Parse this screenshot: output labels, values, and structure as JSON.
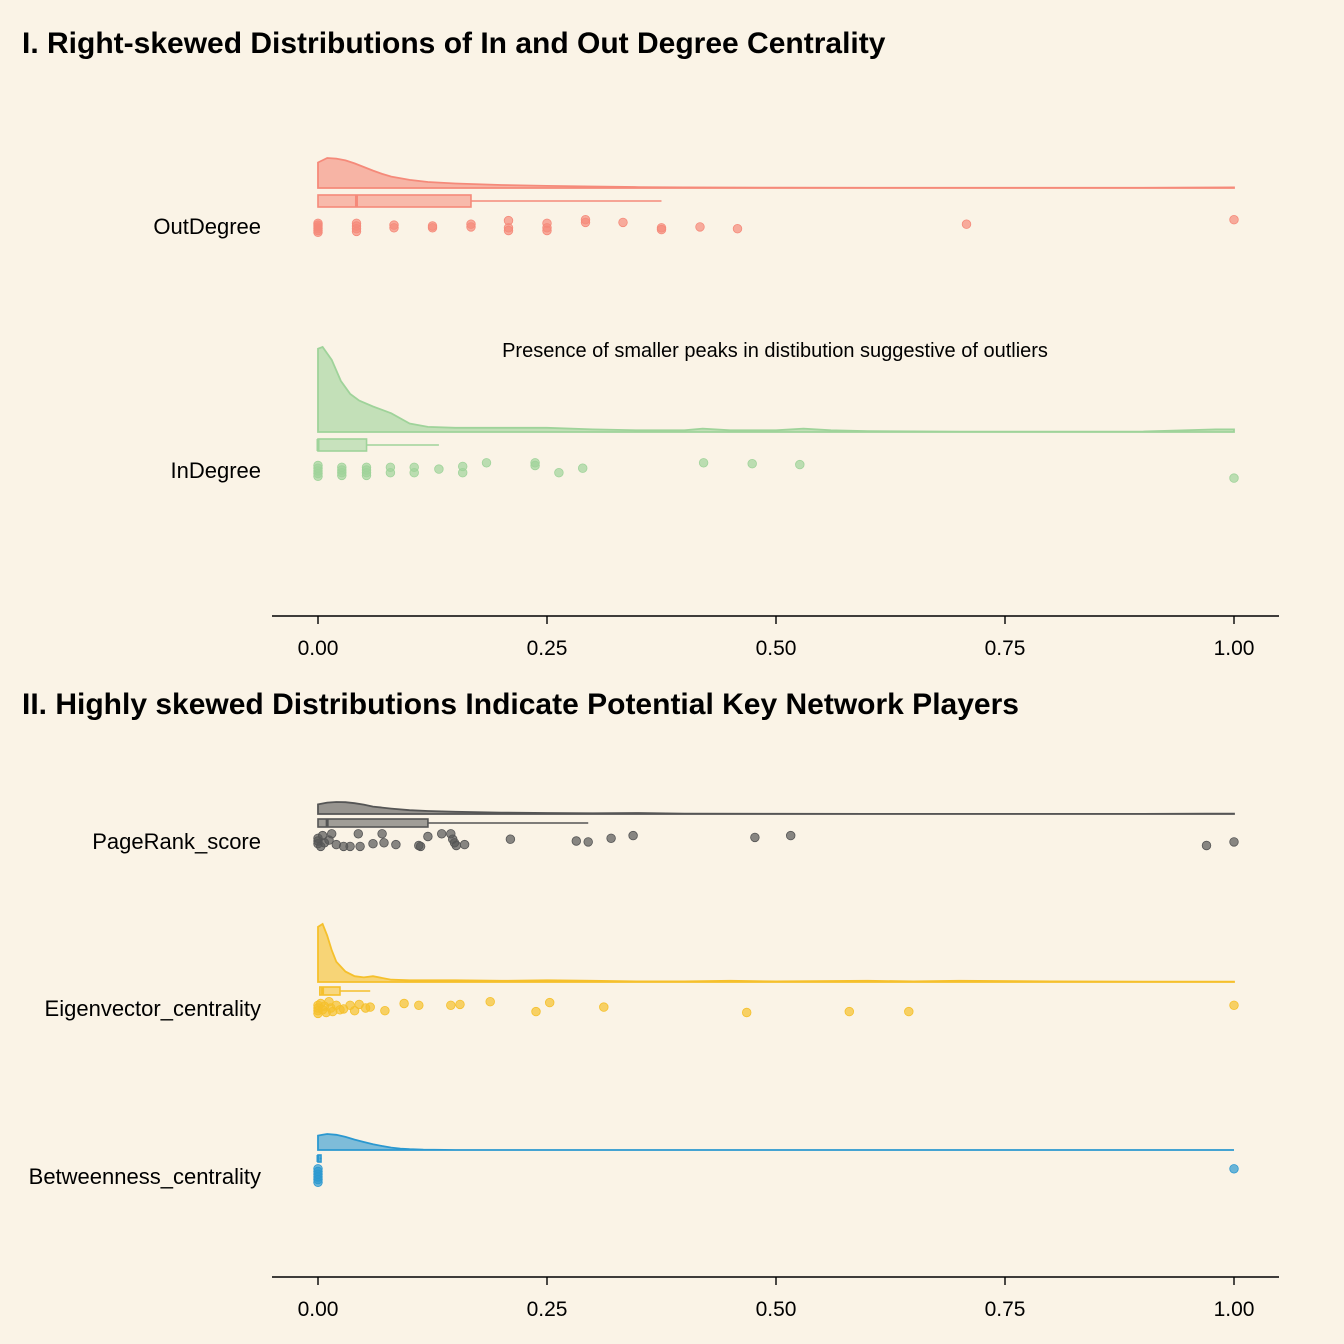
{
  "chart_data": [
    {
      "type": "raincloud",
      "title": "I. Right-skewed Distributions of In and Out Degree Centrality",
      "xlim": [
        0,
        1
      ],
      "x_ticks": [
        "0.00",
        "0.25",
        "0.50",
        "0.75",
        "1.00"
      ],
      "annotation": "Presence of smaller peaks in distibution suggestive of outliers",
      "series": [
        {
          "name": "OutDegree",
          "color": "#f58a7a",
          "box": {
            "whisker_low": 0.0,
            "q1": 0.0,
            "median": 0.042,
            "q3": 0.167,
            "whisker_high": 0.375
          },
          "density_x": [
            0,
            0.01,
            0.02,
            0.03,
            0.04,
            0.05,
            0.06,
            0.07,
            0.08,
            0.1,
            0.12,
            0.15,
            0.2,
            0.25,
            0.3,
            0.35,
            0.4,
            0.5,
            0.6,
            0.7,
            0.8,
            0.9,
            1.0
          ],
          "density_y": [
            0.85,
            1.0,
            0.98,
            0.92,
            0.82,
            0.7,
            0.58,
            0.47,
            0.38,
            0.27,
            0.2,
            0.15,
            0.1,
            0.07,
            0.05,
            0.03,
            0.02,
            0.01,
            0.005,
            0.005,
            0.005,
            0.005,
            0.02
          ],
          "points": [
            {
              "x": 0.0,
              "j": -0.3
            },
            {
              "x": 0.0,
              "j": -0.1
            },
            {
              "x": 0.0,
              "j": 0.1
            },
            {
              "x": 0.0,
              "j": 0.3
            },
            {
              "x": 0.0,
              "j": 0.5
            },
            {
              "x": 0.0,
              "j": 0.7
            },
            {
              "x": 0.042,
              "j": -0.3
            },
            {
              "x": 0.042,
              "j": 0.0
            },
            {
              "x": 0.042,
              "j": 0.3
            },
            {
              "x": 0.042,
              "j": 0.6
            },
            {
              "x": 0.083,
              "j": -0.1
            },
            {
              "x": 0.083,
              "j": 0.2
            },
            {
              "x": 0.125,
              "j": 0.0
            },
            {
              "x": 0.125,
              "j": 0.2
            },
            {
              "x": 0.167,
              "j": -0.2
            },
            {
              "x": 0.167,
              "j": 0.1
            },
            {
              "x": 0.208,
              "j": -0.6
            },
            {
              "x": 0.208,
              "j": 0.2
            },
            {
              "x": 0.208,
              "j": 0.5
            },
            {
              "x": 0.25,
              "j": -0.3
            },
            {
              "x": 0.25,
              "j": 0.2
            },
            {
              "x": 0.25,
              "j": 0.5
            },
            {
              "x": 0.292,
              "j": -0.7
            },
            {
              "x": 0.292,
              "j": -0.4
            },
            {
              "x": 0.333,
              "j": -0.4
            },
            {
              "x": 0.375,
              "j": 0.2
            },
            {
              "x": 0.375,
              "j": 0.4
            },
            {
              "x": 0.417,
              "j": 0.1
            },
            {
              "x": 0.458,
              "j": 0.3
            },
            {
              "x": 0.708,
              "j": -0.2
            },
            {
              "x": 1.0,
              "j": -0.7
            }
          ]
        },
        {
          "name": "InDegree",
          "color": "#9fd39a",
          "box": {
            "whisker_low": 0.0,
            "q1": 0.0,
            "median": 0.0,
            "q3": 0.053,
            "whisker_high": 0.132
          },
          "density_x": [
            0,
            0.005,
            0.015,
            0.025,
            0.035,
            0.045,
            0.06,
            0.08,
            0.1,
            0.12,
            0.15,
            0.2,
            0.25,
            0.3,
            0.35,
            0.4,
            0.42,
            0.45,
            0.5,
            0.53,
            0.56,
            0.6,
            0.7,
            0.8,
            0.9,
            0.98,
            1.0
          ],
          "density_y": [
            0.98,
            1.0,
            0.85,
            0.6,
            0.45,
            0.37,
            0.3,
            0.22,
            0.1,
            0.06,
            0.05,
            0.05,
            0.05,
            0.03,
            0.02,
            0.02,
            0.04,
            0.02,
            0.02,
            0.04,
            0.02,
            0.01,
            0.005,
            0.005,
            0.005,
            0.03,
            0.03
          ],
          "points": [
            {
              "x": 0.0,
              "j": -0.5
            },
            {
              "x": 0.0,
              "j": -0.2
            },
            {
              "x": 0.0,
              "j": 0.1
            },
            {
              "x": 0.0,
              "j": 0.4
            },
            {
              "x": 0.0,
              "j": 0.7
            },
            {
              "x": 0.026,
              "j": -0.3
            },
            {
              "x": 0.026,
              "j": 0.0
            },
            {
              "x": 0.026,
              "j": 0.3
            },
            {
              "x": 0.026,
              "j": 0.6
            },
            {
              "x": 0.053,
              "j": -0.3
            },
            {
              "x": 0.053,
              "j": 0.0
            },
            {
              "x": 0.053,
              "j": 0.3
            },
            {
              "x": 0.053,
              "j": 0.6
            },
            {
              "x": 0.079,
              "j": -0.3
            },
            {
              "x": 0.079,
              "j": 0.3
            },
            {
              "x": 0.105,
              "j": -0.3
            },
            {
              "x": 0.105,
              "j": 0.3
            },
            {
              "x": 0.132,
              "j": -0.1
            },
            {
              "x": 0.158,
              "j": -0.4
            },
            {
              "x": 0.158,
              "j": 0.3
            },
            {
              "x": 0.184,
              "j": -0.8
            },
            {
              "x": 0.237,
              "j": -0.8
            },
            {
              "x": 0.237,
              "j": -0.5
            },
            {
              "x": 0.263,
              "j": 0.3
            },
            {
              "x": 0.289,
              "j": -0.2
            },
            {
              "x": 0.421,
              "j": -0.8
            },
            {
              "x": 0.474,
              "j": -0.7
            },
            {
              "x": 0.526,
              "j": -0.6
            },
            {
              "x": 1.0,
              "j": 0.9
            }
          ]
        }
      ]
    },
    {
      "type": "raincloud",
      "title": "II. Highly skewed Distributions Indicate Potential Key Network Players",
      "xlim": [
        0,
        1
      ],
      "x_ticks": [
        "0.00",
        "0.25",
        "0.50",
        "0.75",
        "1.00"
      ],
      "series": [
        {
          "name": "PageRank_score",
          "color": "#555555",
          "box": {
            "whisker_low": 0.0,
            "q1": 0.0,
            "median": 0.01,
            "q3": 0.12,
            "whisker_high": 0.295
          },
          "density_x": [
            0,
            0.01,
            0.02,
            0.03,
            0.04,
            0.05,
            0.06,
            0.08,
            0.1,
            0.12,
            0.15,
            0.2,
            0.25,
            0.3,
            0.35,
            0.4,
            0.5,
            0.6,
            0.7,
            0.8,
            0.9,
            0.97,
            1.0
          ],
          "density_y": [
            0.8,
            0.95,
            1.0,
            0.98,
            0.9,
            0.78,
            0.62,
            0.45,
            0.32,
            0.25,
            0.18,
            0.12,
            0.08,
            0.06,
            0.08,
            0.03,
            0.02,
            0.01,
            0.005,
            0.005,
            0.005,
            0.03,
            0.03
          ],
          "points": [
            {
              "x": 0.0,
              "j": -0.3
            },
            {
              "x": 0.0,
              "j": 0.0
            },
            {
              "x": 0.0,
              "j": 0.3
            },
            {
              "x": 0.003,
              "j": 0.6
            },
            {
              "x": 0.005,
              "j": -0.6
            },
            {
              "x": 0.007,
              "j": 0.2
            },
            {
              "x": 0.012,
              "j": -0.1
            },
            {
              "x": 0.015,
              "j": -0.8
            },
            {
              "x": 0.02,
              "j": 0.4
            },
            {
              "x": 0.028,
              "j": 0.6
            },
            {
              "x": 0.035,
              "j": 0.6
            },
            {
              "x": 0.044,
              "j": -0.8
            },
            {
              "x": 0.046,
              "j": 0.6
            },
            {
              "x": 0.06,
              "j": 0.3
            },
            {
              "x": 0.07,
              "j": -0.8
            },
            {
              "x": 0.072,
              "j": 0.2
            },
            {
              "x": 0.085,
              "j": 0.4
            },
            {
              "x": 0.11,
              "j": 0.5
            },
            {
              "x": 0.112,
              "j": 0.6
            },
            {
              "x": 0.12,
              "j": -0.5
            },
            {
              "x": 0.135,
              "j": -0.8
            },
            {
              "x": 0.145,
              "j": -0.8
            },
            {
              "x": 0.147,
              "j": -0.2
            },
            {
              "x": 0.149,
              "j": 0.2
            },
            {
              "x": 0.151,
              "j": 0.5
            },
            {
              "x": 0.16,
              "j": 0.4
            },
            {
              "x": 0.21,
              "j": -0.2
            },
            {
              "x": 0.282,
              "j": 0.0
            },
            {
              "x": 0.295,
              "j": 0.1
            },
            {
              "x": 0.32,
              "j": -0.3
            },
            {
              "x": 0.344,
              "j": -0.6
            },
            {
              "x": 0.477,
              "j": -0.4
            },
            {
              "x": 0.516,
              "j": -0.6
            },
            {
              "x": 0.97,
              "j": 0.5
            },
            {
              "x": 1.0,
              "j": 0.1
            }
          ]
        },
        {
          "name": "Eigenvector_centrality",
          "color": "#f5c02c",
          "box": {
            "whisker_low": 0.0,
            "q1": 0.002,
            "median": 0.005,
            "q3": 0.024,
            "whisker_high": 0.057
          },
          "density_x": [
            0,
            0.005,
            0.01,
            0.015,
            0.02,
            0.03,
            0.04,
            0.05,
            0.06,
            0.08,
            0.1,
            0.15,
            0.2,
            0.25,
            0.3,
            0.35,
            0.4,
            0.45,
            0.5,
            0.6,
            0.65,
            0.7,
            0.8,
            0.9,
            1.0
          ],
          "density_y": [
            0.95,
            1.0,
            0.8,
            0.55,
            0.35,
            0.18,
            0.1,
            0.08,
            0.1,
            0.04,
            0.03,
            0.03,
            0.02,
            0.03,
            0.02,
            0.01,
            0.01,
            0.02,
            0.01,
            0.02,
            0.01,
            0.02,
            0.01,
            0.005,
            0.005
          ],
          "points": [
            {
              "x": 0.0,
              "j": -0.3
            },
            {
              "x": 0.0,
              "j": 0.0
            },
            {
              "x": 0.0,
              "j": 0.3
            },
            {
              "x": 0.0,
              "j": 0.6
            },
            {
              "x": 0.003,
              "j": -0.5
            },
            {
              "x": 0.005,
              "j": 0.2
            },
            {
              "x": 0.007,
              "j": -0.2
            },
            {
              "x": 0.009,
              "j": 0.5
            },
            {
              "x": 0.012,
              "j": -0.7
            },
            {
              "x": 0.014,
              "j": 0.0
            },
            {
              "x": 0.016,
              "j": 0.4
            },
            {
              "x": 0.02,
              "j": -0.3
            },
            {
              "x": 0.024,
              "j": 0.2
            },
            {
              "x": 0.028,
              "j": 0.1
            },
            {
              "x": 0.035,
              "j": -0.3
            },
            {
              "x": 0.04,
              "j": 0.3
            },
            {
              "x": 0.045,
              "j": -0.4
            },
            {
              "x": 0.052,
              "j": 0.0
            },
            {
              "x": 0.057,
              "j": -0.1
            },
            {
              "x": 0.073,
              "j": 0.3
            },
            {
              "x": 0.094,
              "j": -0.5
            },
            {
              "x": 0.11,
              "j": -0.3
            },
            {
              "x": 0.145,
              "j": -0.3
            },
            {
              "x": 0.155,
              "j": -0.4
            },
            {
              "x": 0.188,
              "j": -0.7
            },
            {
              "x": 0.238,
              "j": 0.4
            },
            {
              "x": 0.253,
              "j": -0.6
            },
            {
              "x": 0.312,
              "j": -0.1
            },
            {
              "x": 0.468,
              "j": 0.5
            },
            {
              "x": 0.58,
              "j": 0.4
            },
            {
              "x": 0.645,
              "j": 0.4
            },
            {
              "x": 1.0,
              "j": -0.3
            }
          ]
        },
        {
          "name": "Betweenness_centrality",
          "color": "#2b98d0",
          "box": {
            "whisker_low": 0.0,
            "q1": 0.0,
            "median": 0.0,
            "q3": 0.002,
            "whisker_high": 0.004
          },
          "density_x": [
            0,
            0.005,
            0.01,
            0.02,
            0.03,
            0.04,
            0.05,
            0.06,
            0.07,
            0.08,
            0.09,
            0.1,
            0.115,
            0.15,
            0.3,
            0.5,
            0.7,
            0.9,
            1.0
          ],
          "density_y": [
            0.9,
            0.95,
            1.0,
            0.95,
            0.82,
            0.65,
            0.5,
            0.36,
            0.25,
            0.15,
            0.09,
            0.05,
            0.02,
            0.003,
            0.001,
            0.001,
            0.001,
            0.001,
            0.002
          ],
          "points": [
            {
              "x": 0.0,
              "j": -0.8
            },
            {
              "x": 0.0,
              "j": -0.5
            },
            {
              "x": 0.0,
              "j": -0.2
            },
            {
              "x": 0.0,
              "j": 0.1
            },
            {
              "x": 0.0,
              "j": 0.4
            },
            {
              "x": 0.0,
              "j": 0.7
            },
            {
              "x": 1.0,
              "j": -0.8
            }
          ]
        }
      ]
    }
  ]
}
